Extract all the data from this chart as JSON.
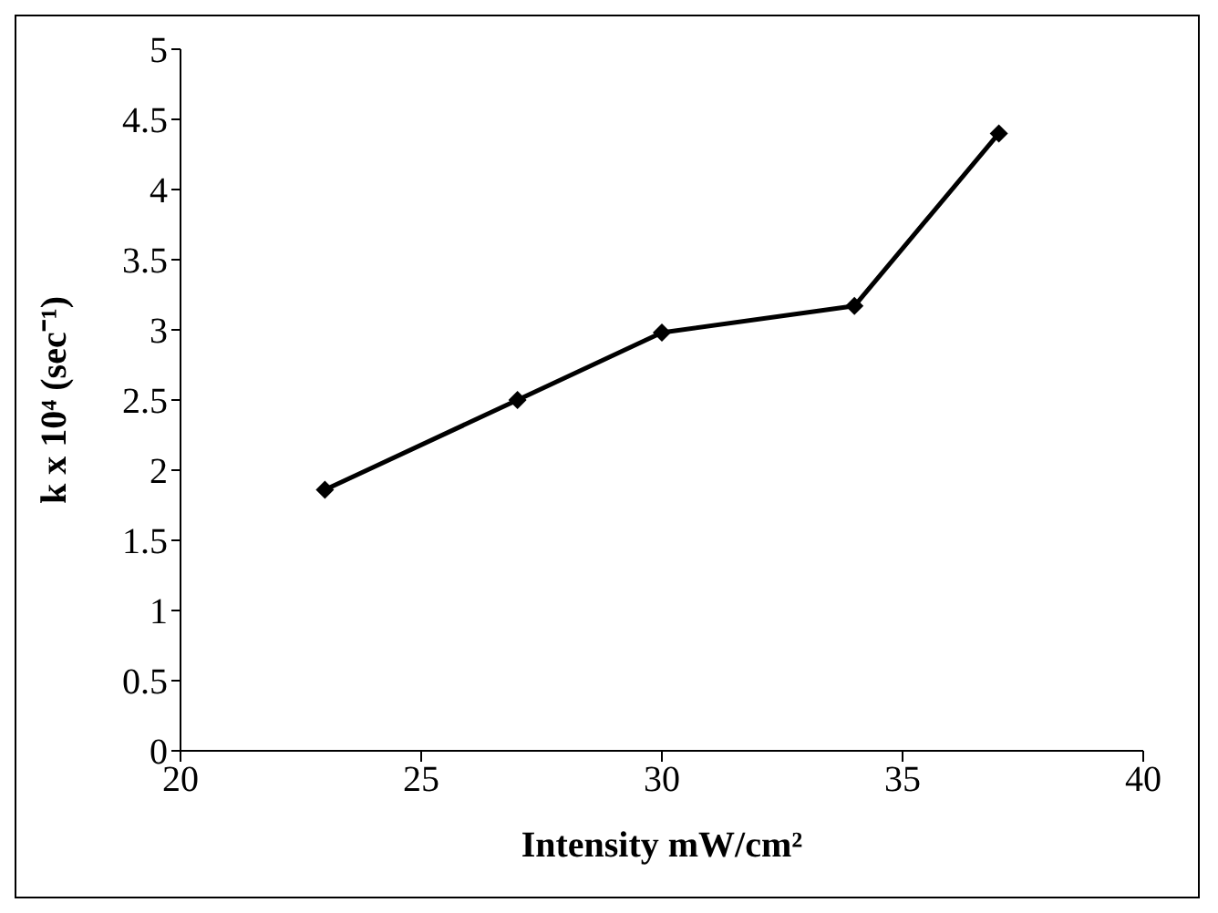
{
  "chart_data": {
    "type": "line",
    "xlabel": "Intensity mW/cm²",
    "ylabel": "k x 10⁴ (sec⁻¹)",
    "x": [
      23,
      27,
      30,
      34,
      37
    ],
    "series": [
      {
        "color": "#000000",
        "values": [
          1.86,
          2.5,
          2.98,
          3.17,
          4.4
        ]
      }
    ],
    "xlim": [
      20,
      40
    ],
    "xticks": [
      20,
      25,
      30,
      35,
      40
    ],
    "ylim": [
      0,
      5
    ],
    "yticks": [
      0,
      0.5,
      1,
      1.5,
      2,
      2.5,
      3,
      3.5,
      4,
      4.5,
      5
    ],
    "grid": false,
    "legend": false,
    "marker": "diamond",
    "line_style": "solid"
  }
}
